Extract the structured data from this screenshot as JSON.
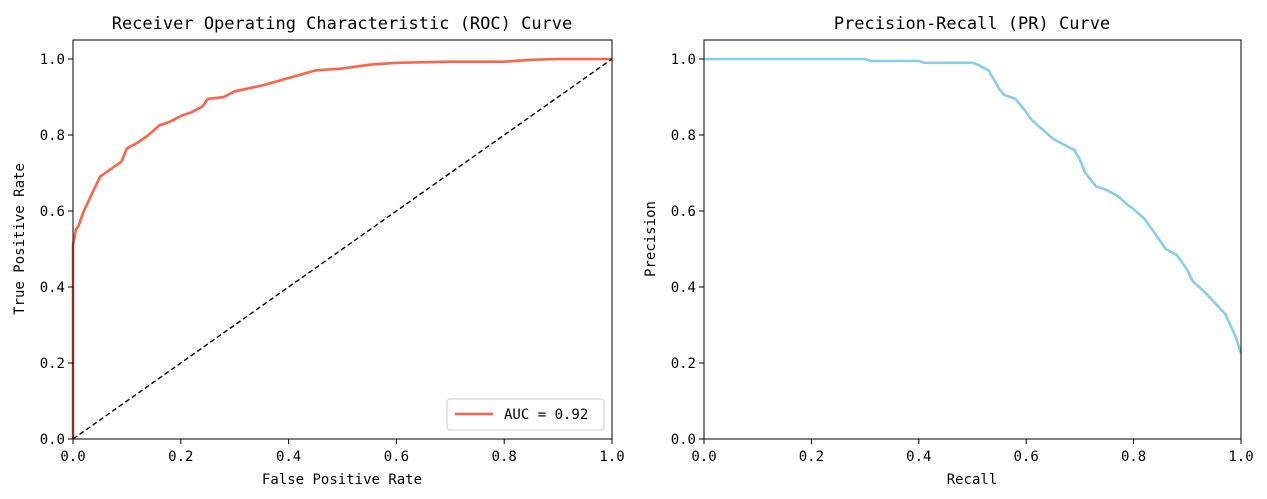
{
  "chart_data": [
    {
      "type": "line",
      "title": "Receiver Operating Characteristic (ROC) Curve",
      "xlabel": "False Positive Rate",
      "ylabel": "True Positive Rate",
      "xlim": [
        0,
        1
      ],
      "ylim": [
        0,
        1.05
      ],
      "xticks": [
        "0.0",
        "0.2",
        "0.4",
        "0.6",
        "0.8",
        "1.0"
      ],
      "yticks": [
        "0.0",
        "0.2",
        "0.4",
        "0.6",
        "0.8",
        "1.0"
      ],
      "legend_position": "lower-right",
      "grid": false,
      "series": [
        {
          "name": "AUC = 0.92",
          "color": "#ff6347",
          "style": "solid",
          "x": [
            0,
            0,
            0.003,
            0.005,
            0.01,
            0.015,
            0.02,
            0.03,
            0.04,
            0.05,
            0.06,
            0.07,
            0.08,
            0.09,
            0.1,
            0.12,
            0.14,
            0.16,
            0.18,
            0.2,
            0.22,
            0.24,
            0.25,
            0.28,
            0.3,
            0.35,
            0.4,
            0.45,
            0.5,
            0.55,
            0.6,
            0.7,
            0.8,
            0.85,
            0.9,
            1.0
          ],
          "y": [
            0,
            0.51,
            0.53,
            0.55,
            0.56,
            0.58,
            0.6,
            0.63,
            0.66,
            0.69,
            0.7,
            0.71,
            0.72,
            0.73,
            0.765,
            0.78,
            0.8,
            0.825,
            0.835,
            0.85,
            0.86,
            0.875,
            0.895,
            0.9,
            0.915,
            0.93,
            0.95,
            0.97,
            0.975,
            0.985,
            0.99,
            0.993,
            0.993,
            0.998,
            1.0,
            1.0
          ]
        },
        {
          "name": "",
          "color": "#000000",
          "style": "dashed",
          "x": [
            0,
            1
          ],
          "y": [
            0,
            1
          ]
        }
      ]
    },
    {
      "type": "line",
      "title": "Precision-Recall (PR) Curve",
      "xlabel": "Recall",
      "ylabel": "Precision",
      "xlim": [
        0,
        1
      ],
      "ylim": [
        0,
        1.05
      ],
      "xticks": [
        "0.0",
        "0.2",
        "0.4",
        "0.6",
        "0.8",
        "1.0"
      ],
      "yticks": [
        "0.0",
        "0.2",
        "0.4",
        "0.6",
        "0.8",
        "1.0"
      ],
      "grid": false,
      "series": [
        {
          "name": "",
          "color": "#87ceeb",
          "style": "solid",
          "x": [
            0,
            0.3,
            0.31,
            0.4,
            0.41,
            0.5,
            0.51,
            0.53,
            0.55,
            0.56,
            0.58,
            0.6,
            0.61,
            0.63,
            0.65,
            0.67,
            0.69,
            0.7,
            0.71,
            0.73,
            0.75,
            0.77,
            0.79,
            0.8,
            0.82,
            0.84,
            0.86,
            0.88,
            0.9,
            0.91,
            0.93,
            0.95,
            0.97,
            0.98,
            0.99,
            1.0
          ],
          "y": [
            1.0,
            1.0,
            0.995,
            0.995,
            0.99,
            0.99,
            0.985,
            0.97,
            0.92,
            0.905,
            0.895,
            0.86,
            0.84,
            0.815,
            0.79,
            0.775,
            0.76,
            0.735,
            0.7,
            0.665,
            0.655,
            0.64,
            0.615,
            0.605,
            0.58,
            0.54,
            0.5,
            0.485,
            0.445,
            0.415,
            0.39,
            0.36,
            0.33,
            0.3,
            0.27,
            0.225
          ]
        }
      ]
    }
  ]
}
